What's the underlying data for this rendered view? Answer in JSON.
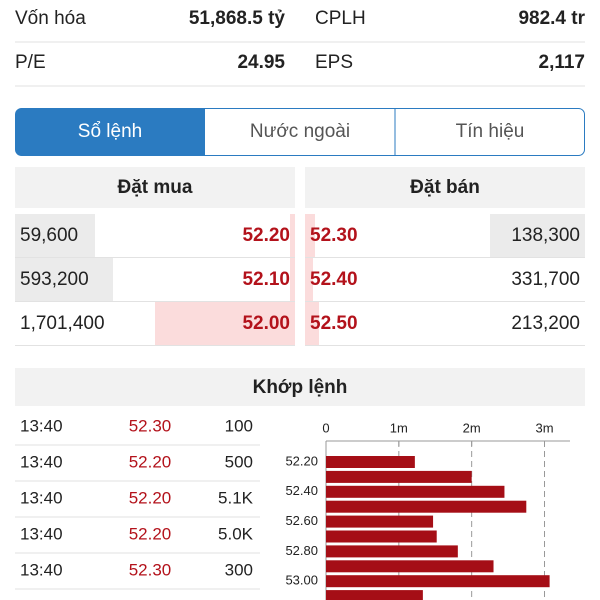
{
  "stats": [
    {
      "label": "Vốn hóa",
      "value": "51,868.5 tỷ"
    },
    {
      "label": "CPLH",
      "value": "982.4 tr"
    },
    {
      "label": "P/E",
      "value": "24.95"
    },
    {
      "label": "EPS",
      "value": "2,117"
    }
  ],
  "tabs": [
    "Sổ lệnh",
    "Nước ngoài",
    "Tín hiệu"
  ],
  "order_book": {
    "buy_title": "Đặt mua",
    "sell_title": "Đặt bán",
    "buy": [
      {
        "volume": "59,600",
        "price": "52.20"
      },
      {
        "volume": "593,200",
        "price": "52.10"
      },
      {
        "volume": "1,701,400",
        "price": "52.00"
      }
    ],
    "sell": [
      {
        "price": "52.30",
        "volume": "138,300"
      },
      {
        "price": "52.40",
        "volume": "331,700"
      },
      {
        "price": "52.50",
        "volume": "213,200"
      }
    ]
  },
  "trades": {
    "title": "Khớp lệnh",
    "rows": [
      [
        "13:40",
        "52.30",
        "100"
      ],
      [
        "13:40",
        "52.20",
        "500"
      ],
      [
        "13:40",
        "52.20",
        "5.1K"
      ],
      [
        "13:40",
        "52.20",
        "5.0K"
      ],
      [
        "13:40",
        "52.30",
        "300"
      ]
    ]
  },
  "chart_data": {
    "type": "bar",
    "orientation": "horizontal",
    "categories": [
      "52.20",
      null,
      "52.40",
      null,
      "52.60",
      null,
      "52.80",
      null,
      "53.00",
      null
    ],
    "values": [
      1220000,
      2000000,
      2450000,
      2750000,
      1470000,
      1520000,
      1810000,
      2300000,
      3070000,
      1330000
    ],
    "color": "#a50e16",
    "xlim": [
      0,
      3350000
    ],
    "xticks": [
      0,
      {
        "value": 1000000,
        "label": "1m"
      },
      {
        "value": 2000000,
        "label": "2m"
      },
      {
        "value": 3000000,
        "label": "3m"
      }
    ],
    "grid": true
  }
}
